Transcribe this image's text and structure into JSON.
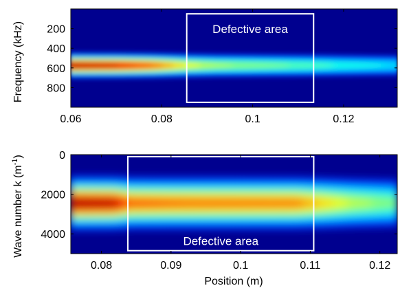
{
  "chart_data": [
    {
      "type": "heatmap",
      "panel": "top",
      "xlim": [
        0.06,
        0.1318
      ],
      "ylim": [
        0,
        1000
      ],
      "y_reversed": true,
      "xticks": [
        0.06,
        0.08,
        0.1,
        0.12
      ],
      "xtick_labels": [
        "0.06",
        "0.08",
        "0.1",
        "0.12"
      ],
      "yticks": [
        200,
        400,
        600,
        800
      ],
      "ytick_labels": [
        "200",
        "400",
        "600",
        "800"
      ],
      "xlabel": "",
      "ylabel": "Frequency (kHz)",
      "colormap": "jet",
      "band": {
        "center_frequency_kHz": 575,
        "intensity_profile": [
          {
            "x": 0.06,
            "value": 1.0
          },
          {
            "x": 0.07,
            "value": 0.95
          },
          {
            "x": 0.078,
            "value": 0.82
          },
          {
            "x": 0.086,
            "value": 0.6
          },
          {
            "x": 0.092,
            "value": 0.52
          },
          {
            "x": 0.1,
            "value": 0.48
          },
          {
            "x": 0.112,
            "value": 0.42
          },
          {
            "x": 0.12,
            "value": 0.36
          },
          {
            "x": 0.1318,
            "value": 0.3
          }
        ]
      },
      "annotation": {
        "text": "Defective area",
        "x_range": [
          0.0855,
          0.1134
        ],
        "y_range": [
          50,
          950
        ]
      }
    },
    {
      "type": "heatmap",
      "panel": "bottom",
      "xlim": [
        0.0756,
        0.1225
      ],
      "ylim": [
        0,
        5000
      ],
      "y_reversed": true,
      "xticks": [
        0.08,
        0.09,
        0.1,
        0.11,
        0.12
      ],
      "xtick_labels": [
        "0.08",
        "0.09",
        "0.1",
        "0.11",
        "0.12"
      ],
      "yticks": [
        0,
        2000,
        4000
      ],
      "ytick_labels": [
        "0",
        "2000",
        "4000"
      ],
      "xlabel": "Position (m)",
      "ylabel_main": "Wave number k (m",
      "ylabel_sup": "-1",
      "ylabel_end": ")",
      "colormap": "jet",
      "band": {
        "center_wavenumber": 2450,
        "intensity_profile": [
          {
            "x": 0.0756,
            "value": 1.0
          },
          {
            "x": 0.082,
            "value": 0.97
          },
          {
            "x": 0.084,
            "value": 0.8
          },
          {
            "x": 0.09,
            "value": 0.78
          },
          {
            "x": 0.1,
            "value": 0.77
          },
          {
            "x": 0.108,
            "value": 0.76
          },
          {
            "x": 0.111,
            "value": 0.68
          },
          {
            "x": 0.116,
            "value": 0.55
          },
          {
            "x": 0.1225,
            "value": 0.45
          }
        ]
      },
      "annotation": {
        "text": "Defective area",
        "x_range": [
          0.0838,
          0.1105
        ],
        "y_range": [
          100,
          4850
        ]
      }
    }
  ],
  "colors": {
    "background": "#00007f",
    "box": "#ffffff",
    "axis": "#000000"
  }
}
